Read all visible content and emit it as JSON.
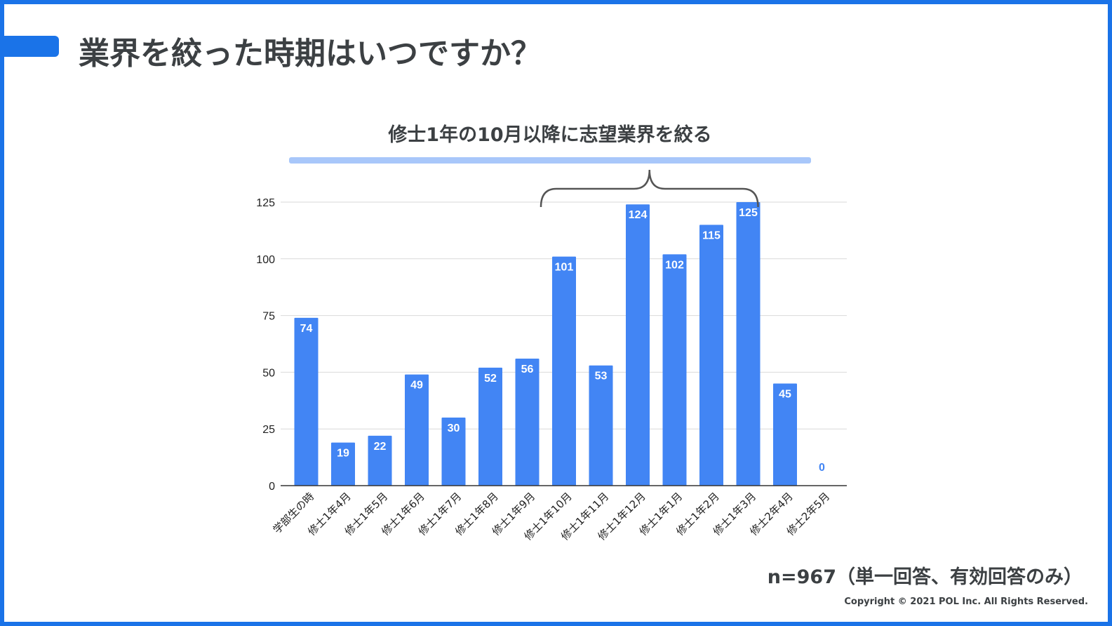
{
  "page": {
    "title": "業界を絞った時期はいつですか？",
    "annotation": "修士1年の10月以降に志望業界を絞る",
    "sample_note": "n=967（単一回答、有効回答のみ）",
    "copyright": "Copyright © 2021 POL Inc. All Rights Reserved."
  },
  "colors": {
    "accent": "#1a73e8",
    "bar": "#4285f4",
    "highlight": "#a8c7fa",
    "text": "#3c4043",
    "grid": "#d9d9d9"
  },
  "chart_data": {
    "type": "bar",
    "categories": [
      "学部生の時",
      "修士1年4月",
      "修士1年5月",
      "修士1年6月",
      "修士1年7月",
      "修士1年8月",
      "修士1年9月",
      "修士1年10月",
      "修士1年11月",
      "修士1年12月",
      "修士1年1月",
      "修士1年2月",
      "修士1年3月",
      "修士2年4月",
      "修士2年5月"
    ],
    "values": [
      74,
      19,
      22,
      49,
      30,
      52,
      56,
      101,
      53,
      124,
      102,
      115,
      125,
      45,
      0
    ],
    "yticks": [
      0,
      25,
      50,
      75,
      100,
      125
    ],
    "ylim": [
      0,
      125
    ],
    "grid": true,
    "title": "",
    "xlabel": "",
    "ylabel": "",
    "brace_categories": [
      "修士1年10月",
      "修士1年3月"
    ]
  }
}
